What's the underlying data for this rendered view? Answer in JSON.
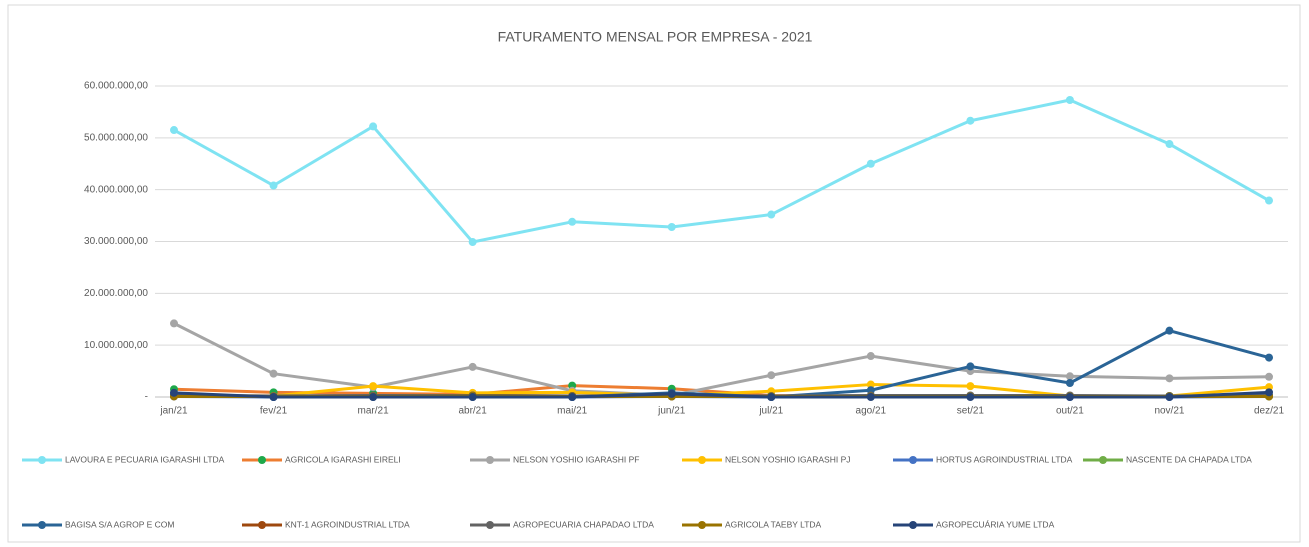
{
  "chart_data": {
    "type": "line",
    "title": "FATURAMENTO MENSAL POR EMPRESA - 2021",
    "categories": [
      "jan/21",
      "fev/21",
      "mar/21",
      "abr/21",
      "mai/21",
      "jun/21",
      "jul/21",
      "ago/21",
      "set/21",
      "out/21",
      "nov/21",
      "dez/21"
    ],
    "ylim": [
      0,
      60000000
    ],
    "yticks": [
      {
        "value": 0,
        "label": "-"
      },
      {
        "value": 10000000,
        "label": "10.000.000,00"
      },
      {
        "value": 20000000,
        "label": "20.000.000,00"
      },
      {
        "value": 30000000,
        "label": "30.000.000,00"
      },
      {
        "value": 40000000,
        "label": "40.000.000,00"
      },
      {
        "value": 50000000,
        "label": "50.000.000,00"
      },
      {
        "value": 60000000,
        "label": "60.000.000,00"
      }
    ],
    "grid": true,
    "legend": "bottom",
    "series": [
      {
        "name": "LAVOURA E PECUARIA IGARASHI LTDA",
        "color": "#7fe3f2",
        "values": [
          51500000,
          40800000,
          52200000,
          29900000,
          33800000,
          32800000,
          35200000,
          45000000,
          53300000,
          57300000,
          48800000,
          37900000
        ]
      },
      {
        "name": "AGRICOLA IGARASHI EIRELI",
        "color": "#ed7d31",
        "marker_color": "#1ea84a",
        "values": [
          1500000,
          900000,
          700000,
          500000,
          2200000,
          1600000,
          300000,
          200000,
          200000,
          200000,
          200000,
          300000
        ]
      },
      {
        "name": "NELSON YOSHIO IGARASHI PF",
        "color": "#a5a5a5",
        "values": [
          14200000,
          4500000,
          1900000,
          5800000,
          1200000,
          300000,
          4200000,
          7900000,
          5000000,
          4000000,
          3600000,
          3900000
        ]
      },
      {
        "name": "NELSON YOSHIO IGARASHI PJ",
        "color": "#ffc000",
        "values": [
          300000,
          200000,
          2100000,
          800000,
          900000,
          300000,
          1100000,
          2400000,
          2100000,
          200000,
          200000,
          1900000
        ]
      },
      {
        "name": "HORTUS AGROINDUSTRIAL LTDA",
        "color": "#4472c4",
        "values": [
          100000,
          0,
          100000,
          100000,
          0,
          100000,
          0,
          100000,
          100000,
          0,
          0,
          100000
        ]
      },
      {
        "name": "NASCENTE DA CHAPADA LTDA",
        "color": "#70ad47",
        "values": [
          200000,
          100000,
          100000,
          200000,
          100000,
          100000,
          100000,
          100000,
          100000,
          100000,
          100000,
          100000
        ]
      },
      {
        "name": "BAGISA S/A AGROP E COM",
        "color": "#2a6496",
        "values": [
          500000,
          0,
          0,
          0,
          0,
          800000,
          0,
          1300000,
          5900000,
          2700000,
          12800000,
          7600000
        ]
      },
      {
        "name": "KNT-1 AGROINDUSTRIAL LTDA",
        "color": "#9e480e",
        "values": [
          200000,
          100000,
          200000,
          300000,
          200000,
          100000,
          100000,
          100000,
          200000,
          200000,
          100000,
          200000
        ]
      },
      {
        "name": "AGROPECUARIA CHAPADAO LTDA",
        "color": "#636363",
        "values": [
          300000,
          200000,
          300000,
          300000,
          200000,
          300000,
          200000,
          300000,
          300000,
          300000,
          200000,
          300000
        ]
      },
      {
        "name": "AGRICOLA TAEBY LTDA",
        "color": "#997300",
        "values": [
          100000,
          100000,
          100000,
          200000,
          100000,
          100000,
          100000,
          100000,
          100000,
          100000,
          100000,
          100000
        ]
      },
      {
        "name": "AGROPECUÁRIA YUME LTDA",
        "color": "#264478",
        "values": [
          800000,
          0,
          0,
          0,
          0,
          600000,
          0,
          0,
          0,
          0,
          0,
          900000
        ]
      }
    ]
  }
}
